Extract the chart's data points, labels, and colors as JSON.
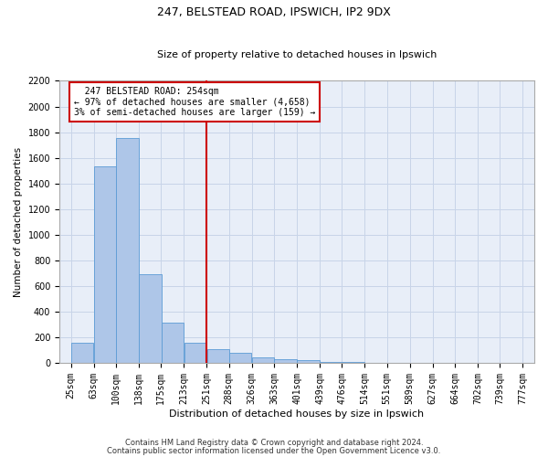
{
  "title_line1": "247, BELSTEAD ROAD, IPSWICH, IP2 9DX",
  "title_line2": "Size of property relative to detached houses in Ipswich",
  "xlabel": "Distribution of detached houses by size in Ipswich",
  "ylabel": "Number of detached properties",
  "footnote1": "Contains HM Land Registry data © Crown copyright and database right 2024.",
  "footnote2": "Contains public sector information licensed under the Open Government Licence v3.0.",
  "annotation_line1": "247 BELSTEAD ROAD: 254sqm",
  "annotation_line2": "← 97% of detached houses are smaller (4,658)",
  "annotation_line3": "3% of semi-detached houses are larger (159) →",
  "bins": [
    25,
    63,
    100,
    138,
    175,
    213,
    251,
    288,
    326,
    363,
    401,
    439,
    476,
    514,
    551,
    589,
    627,
    664,
    702,
    739,
    777
  ],
  "bar_heights": [
    155,
    1535,
    1755,
    695,
    315,
    155,
    110,
    75,
    40,
    25,
    20,
    10,
    5,
    3,
    2,
    1,
    1,
    0,
    0,
    0
  ],
  "bar_color": "#aec6e8",
  "bar_edge_color": "#5b9bd5",
  "vline_color": "#cc0000",
  "vline_x": 251,
  "annotation_box_color": "#cc0000",
  "grid_color": "#c8d4e8",
  "background_color": "#e8eef8",
  "ylim": [
    0,
    2200
  ],
  "yticks": [
    0,
    200,
    400,
    600,
    800,
    1000,
    1200,
    1400,
    1600,
    1800,
    2000,
    2200
  ],
  "title1_fontsize": 9,
  "title2_fontsize": 8,
  "xlabel_fontsize": 8,
  "ylabel_fontsize": 7.5,
  "tick_fontsize": 7,
  "annotation_fontsize": 7,
  "footnote_fontsize": 6
}
